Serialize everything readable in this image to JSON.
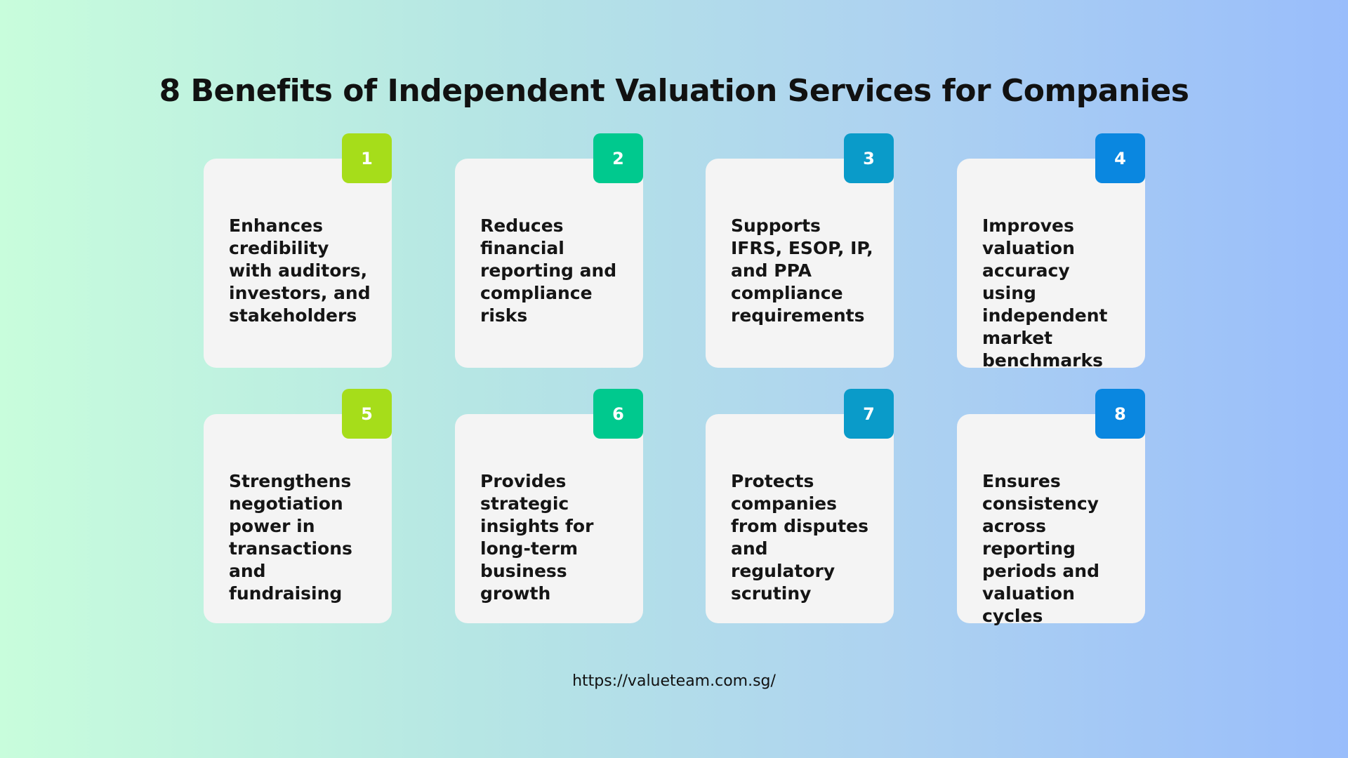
{
  "header": {
    "title": "8 Benefits of Independent Valuation Services for Companies"
  },
  "cards": [
    {
      "number": 1,
      "text": "Enhances credibility with auditors, investors, and stakeholders"
    },
    {
      "number": 2,
      "text": "Reduces financial reporting and compliance risks"
    },
    {
      "number": 3,
      "text": "Supports IFRS, ESOP, IP, and PPA compliance requirements"
    },
    {
      "number": 4,
      "text": "Improves valuation accuracy using independent market benchmarks"
    },
    {
      "number": 5,
      "text": "Strengthens negotiation power in transactions and fundraising"
    },
    {
      "number": 6,
      "text": "Provides strategic insights for long-term business growth"
    },
    {
      "number": 7,
      "text": "Protects companies from disputes and regulatory scrutiny"
    },
    {
      "number": 8,
      "text": "Ensures consistency across reporting periods and valuation cycles"
    }
  ],
  "footer": {
    "url": "https://valueteam.com.sg/"
  }
}
